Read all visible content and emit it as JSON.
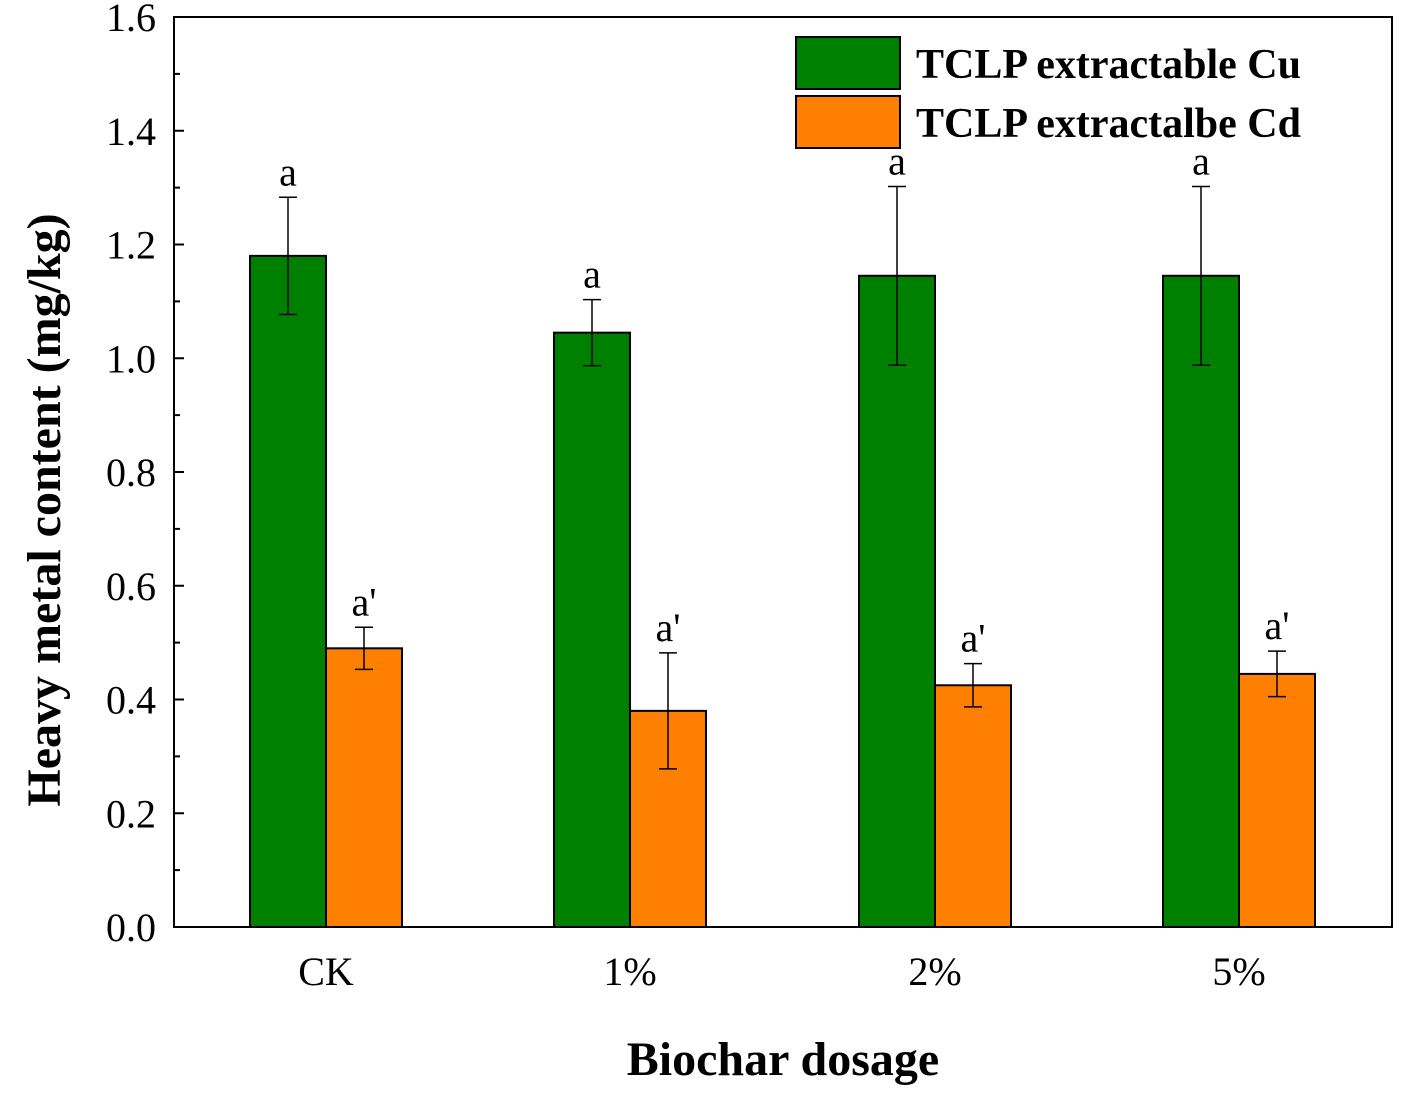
{
  "chart_data": {
    "type": "bar",
    "title": "",
    "xlabel": "Biochar dosage",
    "ylabel": "Heavy metal content (mg/kg)",
    "ylim": [
      0.0,
      1.6
    ],
    "yticks": [
      "0.0",
      "0.2",
      "0.4",
      "0.6",
      "0.8",
      "1.0",
      "1.2",
      "1.4",
      "1.6"
    ],
    "categories": [
      "CK",
      "1%",
      "2%",
      "5%"
    ],
    "legend_position": "top-right",
    "series": [
      {
        "name": "TCLP extractable Cu",
        "color": "#008000",
        "values": [
          1.18,
          1.045,
          1.145,
          1.145
        ],
        "errors": [
          0.103,
          0.058,
          0.157,
          0.157
        ],
        "labels": [
          "a",
          "a",
          "a",
          "a"
        ]
      },
      {
        "name": "TCLP extractalbe Cd",
        "color": "#FF8000",
        "values": [
          0.49,
          0.38,
          0.425,
          0.445
        ],
        "errors": [
          0.037,
          0.102,
          0.038,
          0.04
        ],
        "labels": [
          "a'",
          "a'",
          "a'",
          "a'"
        ]
      }
    ]
  }
}
